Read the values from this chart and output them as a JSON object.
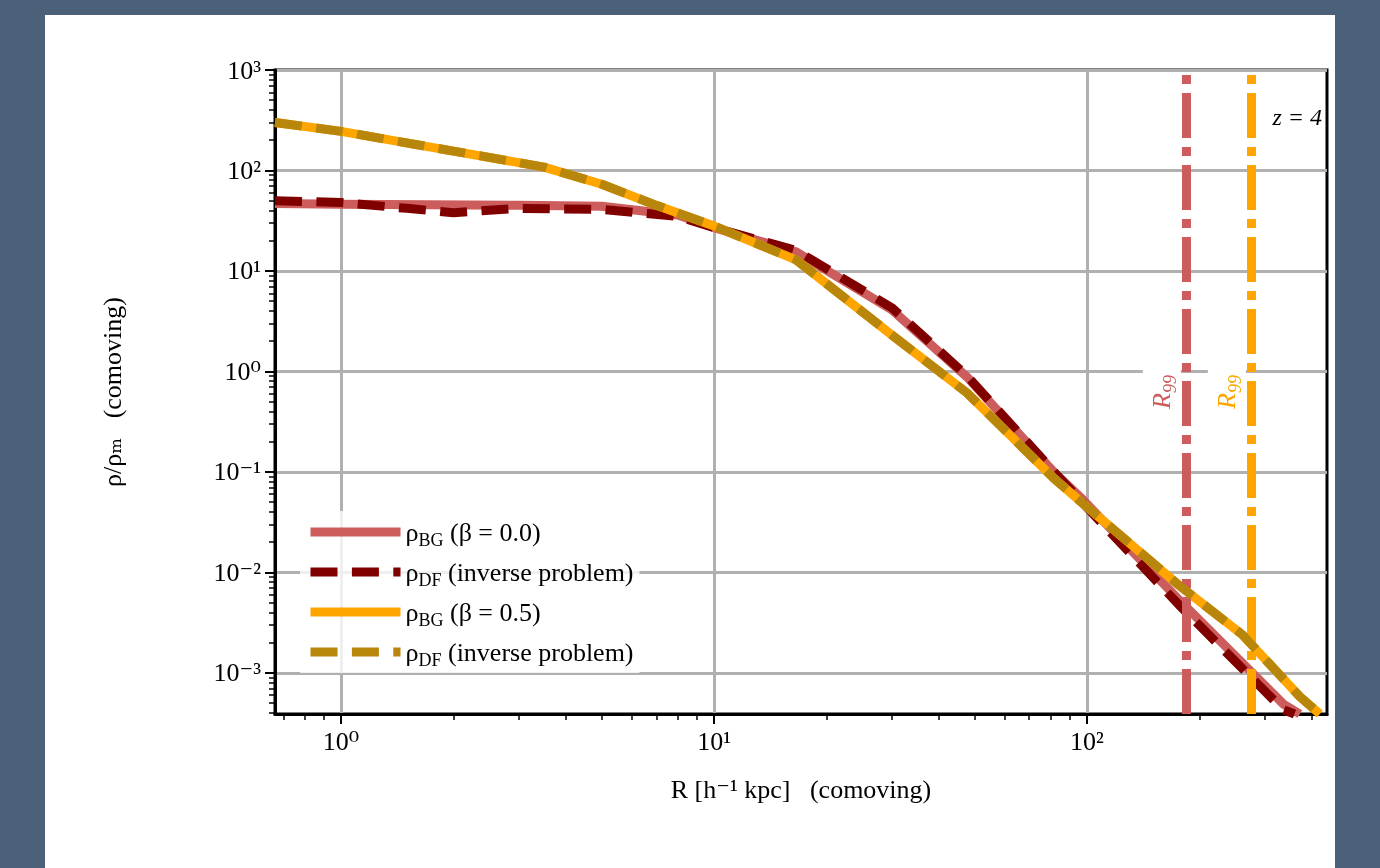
{
  "chart_data": {
    "type": "line",
    "xlabel": "R [h⁻¹ kpc]   (comoving)",
    "ylabel": "ρ/ρₘ   (comoving)",
    "annotations": [
      "z = 4"
    ],
    "log": "xy",
    "grid": true,
    "legend": "bottom left",
    "xlim": [
      0.665,
      440
    ],
    "ylim": [
      0.00039,
      1000
    ],
    "xticks": [
      {
        "value": 1,
        "label": "10⁰"
      },
      {
        "value": 10,
        "label": "10¹"
      },
      {
        "value": 100,
        "label": "10²"
      }
    ],
    "yticks": [
      {
        "value": 0.001,
        "label": "10⁻³"
      },
      {
        "value": 0.01,
        "label": "10⁻²"
      },
      {
        "value": 0.1,
        "label": "10⁻¹"
      },
      {
        "value": 1,
        "label": "10⁰"
      },
      {
        "value": 10,
        "label": "10¹"
      },
      {
        "value": 100,
        "label": "10²"
      },
      {
        "value": 1000,
        "label": "10³"
      }
    ],
    "ref_lines": [
      {
        "axis": "x",
        "value": 184,
        "label": "R$_{99}$",
        "color": "#cd5c5c",
        "line_style": "dashdot"
      },
      {
        "axis": "x",
        "value": 275,
        "label": "R$_{99}$",
        "color": "#ffa500",
        "line_style": "dashdot"
      }
    ],
    "series": [
      {
        "name": "ρ$_{BG}$ (β = 0.0)",
        "color": "#cd5c5c",
        "line_style": "solid",
        "x": [
          0.665,
          1,
          3,
          5,
          8,
          10,
          16.6,
          30,
          47.7,
          81.6,
          96,
          176,
          336,
          372
        ],
        "values": [
          47,
          46,
          45,
          44,
          36,
          27,
          15.5,
          4.1,
          0.88,
          0.099,
          0.056,
          0.0054,
          0.00049,
          0.00039
        ]
      },
      {
        "name": "ρ$_{DF}$ (inverse problem)",
        "color": "#800000",
        "line_style": "dashed",
        "x": [
          0.665,
          1,
          1.5,
          2,
          3,
          5,
          8,
          10,
          16.6,
          30,
          47.7,
          81.6,
          96,
          176,
          336,
          360
        ],
        "values": [
          50,
          48,
          42,
          38,
          42,
          41,
          35,
          27,
          16,
          4.3,
          0.9,
          0.1,
          0.052,
          0.0048,
          0.00043,
          0.00039
        ]
      },
      {
        "name": "ρ$_{BG}$ (β = 0.5)",
        "color": "#ffa500",
        "line_style": "solid",
        "x": [
          0.665,
          1,
          2,
          3.5,
          5,
          7,
          10,
          16.6,
          30,
          47.7,
          81.6,
          96,
          176,
          261,
          372,
          421
        ],
        "values": [
          300,
          245,
          156,
          108,
          73,
          45,
          28,
          12.9,
          2.3,
          0.61,
          0.086,
          0.051,
          0.0075,
          0.0024,
          0.00058,
          0.00039
        ]
      },
      {
        "name": "ρ$_{DF}$ (inverse problem)",
        "color": "#b8860b",
        "line_style": "dashed",
        "x": [
          0.665,
          1,
          2,
          3.5,
          5,
          7,
          10,
          16.6,
          30,
          47.7,
          81.6,
          96,
          176,
          261,
          372,
          421
        ],
        "values": [
          300,
          245,
          156,
          108,
          73,
          45,
          28,
          12.9,
          2.3,
          0.61,
          0.086,
          0.051,
          0.0075,
          0.0024,
          0.00058,
          0.00039
        ]
      }
    ]
  }
}
